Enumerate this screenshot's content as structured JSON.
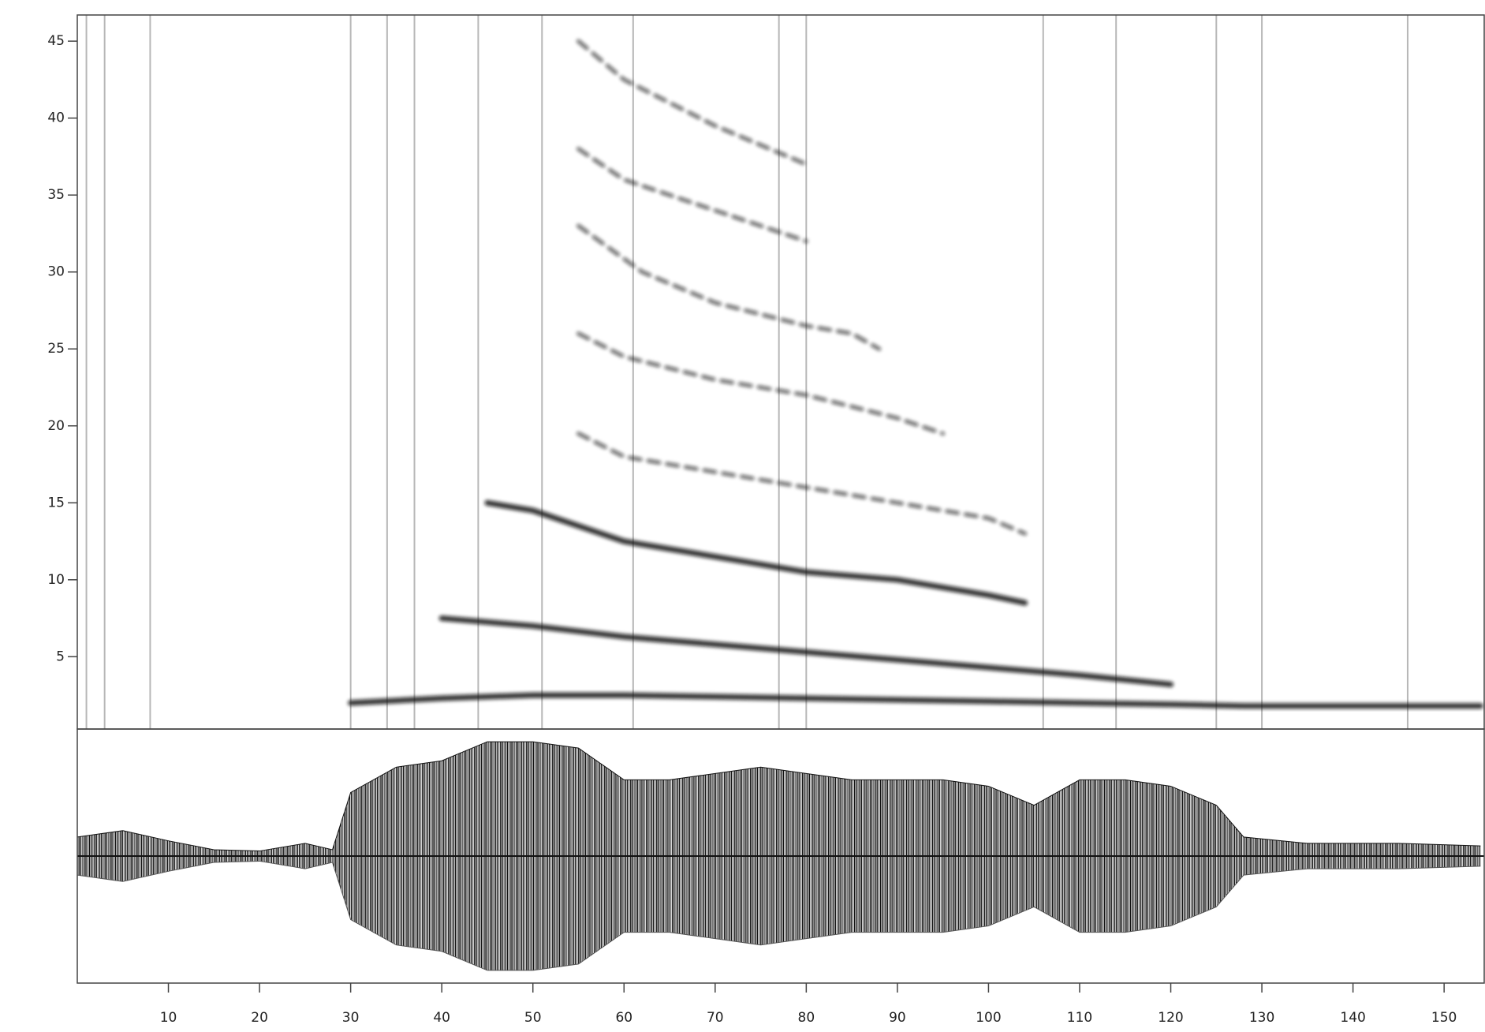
{
  "chart_data": [
    {
      "type": "line",
      "xlim": [
        0,
        154.4
      ],
      "ylim": [
        0.3,
        46.7
      ],
      "yticks": [
        5,
        10,
        15,
        20,
        25,
        30,
        35,
        40,
        45
      ],
      "color": "#111111",
      "onsets": [
        1,
        3,
        8,
        30,
        34,
        37,
        44,
        51,
        61,
        77,
        80,
        106,
        114,
        125,
        130,
        146
      ],
      "series": [
        {
          "x": [
            30,
            40,
            50,
            60,
            70,
            80,
            90,
            100,
            110,
            120,
            128,
            140,
            154
          ],
          "values": [
            2,
            2.3,
            2.5,
            2.5,
            2.4,
            2.3,
            2.2,
            2.1,
            2,
            1.9,
            1.8,
            1.8,
            1.8
          ]
        },
        {
          "x": [
            40,
            50,
            60,
            70,
            80,
            90,
            100,
            110,
            120
          ],
          "values": [
            7.5,
            7,
            6.3,
            5.8,
            5.3,
            4.8,
            4.3,
            3.8,
            3.2
          ]
        },
        {
          "x": [
            45,
            50,
            60,
            70,
            80,
            90,
            100,
            104
          ],
          "values": [
            15,
            14.5,
            12.5,
            11.5,
            10.5,
            10,
            9,
            8.5
          ]
        },
        {
          "x": [
            55,
            60,
            70,
            80,
            90,
            100,
            104
          ],
          "values": [
            19.5,
            18,
            17,
            16,
            15,
            14,
            13
          ]
        },
        {
          "x": [
            55,
            60,
            70,
            80,
            90,
            95
          ],
          "values": [
            26,
            24.5,
            23,
            22,
            20.5,
            19.5
          ]
        },
        {
          "x": [
            55,
            62,
            70,
            80,
            85,
            88
          ],
          "values": [
            33,
            30,
            28,
            26.5,
            26,
            25
          ]
        },
        {
          "x": [
            55,
            60,
            70,
            80
          ],
          "values": [
            38,
            36,
            34,
            32
          ]
        },
        {
          "x": [
            55,
            60,
            70,
            80
          ],
          "values": [
            45,
            42.5,
            39.5,
            37
          ]
        }
      ]
    },
    {
      "type": "area",
      "xlim": [
        0,
        154.4
      ],
      "ylim": [
        -1,
        1
      ],
      "xticks": [
        10,
        20,
        30,
        40,
        50,
        60,
        70,
        80,
        90,
        100,
        110,
        120,
        130,
        140,
        150
      ],
      "color": "#111111",
      "x": [
        0,
        5,
        10,
        15,
        20,
        25,
        28,
        30,
        35,
        40,
        45,
        50,
        55,
        60,
        65,
        70,
        75,
        80,
        85,
        90,
        95,
        100,
        105,
        110,
        115,
        120,
        125,
        128,
        135,
        145,
        154
      ],
      "values": [
        0.15,
        0.2,
        0.12,
        0.05,
        0.04,
        0.1,
        0.05,
        0.5,
        0.7,
        0.75,
        0.9,
        0.9,
        0.85,
        0.6,
        0.6,
        0.65,
        0.7,
        0.65,
        0.6,
        0.6,
        0.6,
        0.55,
        0.4,
        0.6,
        0.6,
        0.55,
        0.4,
        0.15,
        0.1,
        0.1,
        0.08
      ]
    }
  ]
}
